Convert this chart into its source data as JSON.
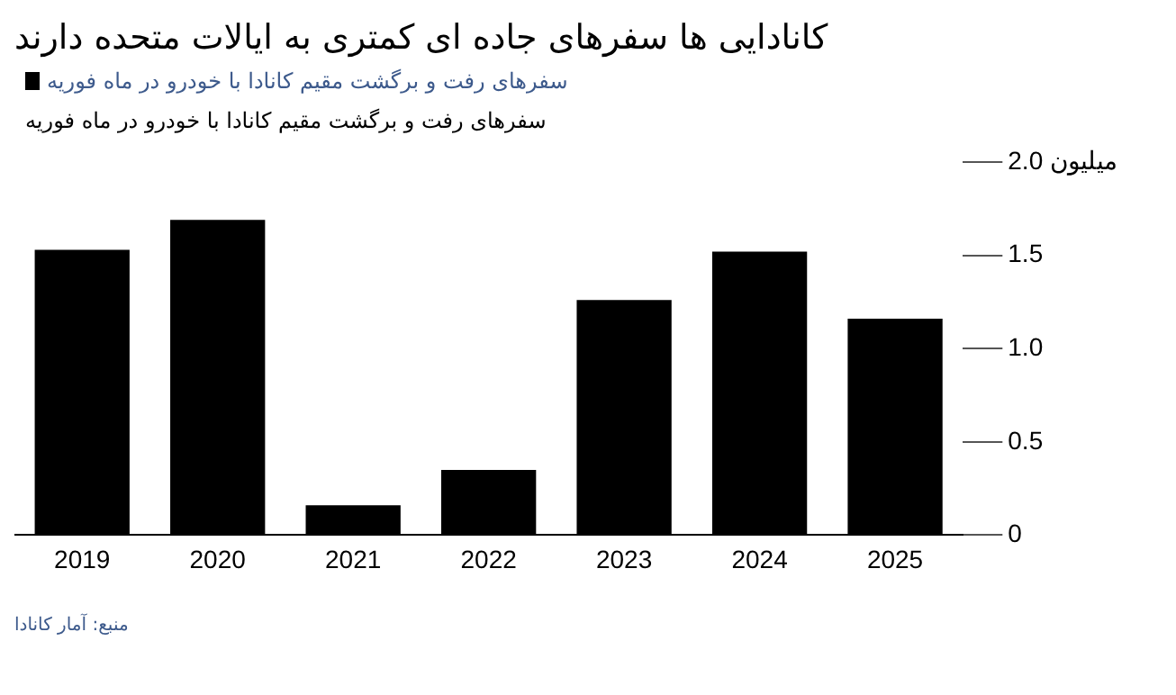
{
  "chart_data": {
    "type": "bar",
    "title": "کانادایی ها سفرهای جاده ای کمتری به ایالات متحده دارند",
    "subtitle": "سفرهای رفت و برگشت مقیم کانادا با خودرو در ماه فوریه",
    "categories": [
      "2019",
      "2020",
      "2021",
      "2022",
      "2023",
      "2024",
      "2025"
    ],
    "series": [
      {
        "name": "سفرهای رفت و برگشت مقیم کانادا با خودرو در ماه فوریه",
        "color": "#000000",
        "values": [
          1.53,
          1.69,
          0.16,
          0.35,
          1.26,
          1.52,
          1.16
        ]
      }
    ],
    "ylim": [
      0,
      2
    ],
    "yticks": [
      0,
      0.5,
      {
        "value": 1,
        "label": "1.0"
      },
      1.5,
      {
        "value": 2,
        "label": "2.0 میلیون"
      }
    ],
    "legend": "top left",
    "annotations": [
      "منبع: آمار کانادا"
    ]
  }
}
